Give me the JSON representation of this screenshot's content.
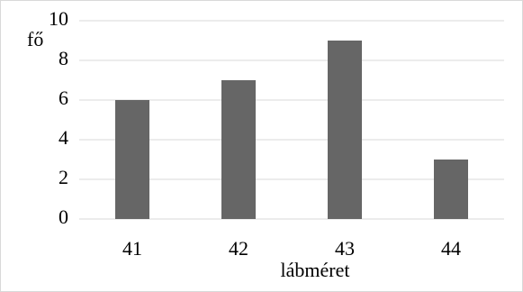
{
  "chart_data": {
    "type": "bar",
    "y_label": "fő",
    "x_label": "lábméret",
    "categories": [
      "41",
      "42",
      "43",
      "44"
    ],
    "values": [
      6,
      7,
      9,
      3
    ],
    "color": "#666666",
    "ylim": [
      0,
      10
    ],
    "yticks": [
      0,
      2,
      4,
      6,
      8,
      10
    ],
    "grid": true
  }
}
